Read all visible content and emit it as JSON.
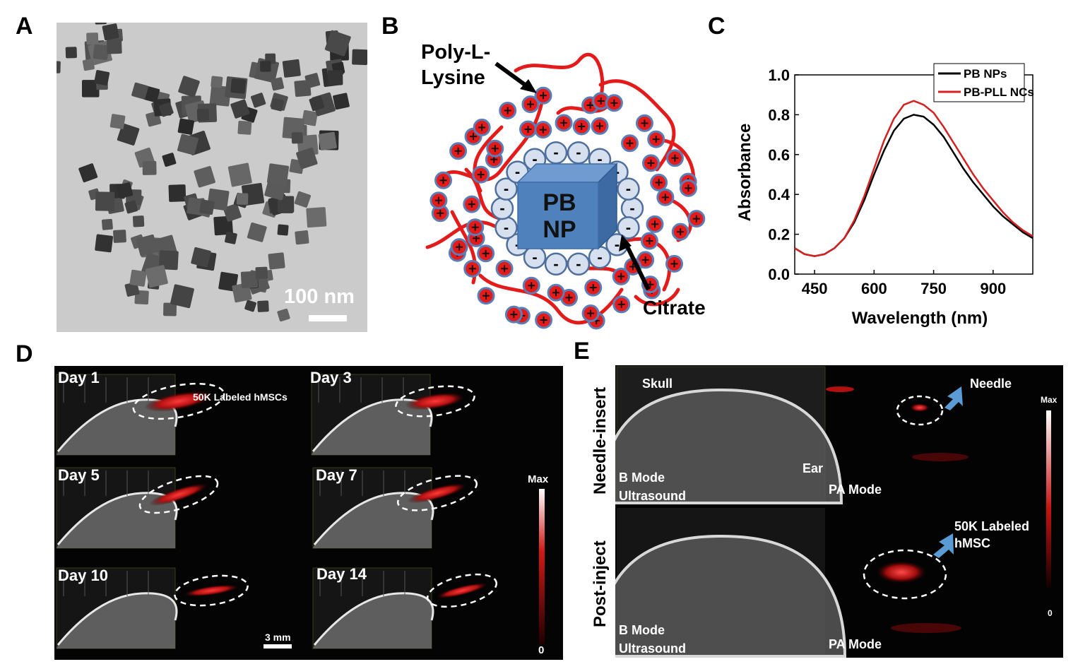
{
  "panels": {
    "A": {
      "label": "A",
      "scale_bar": "100 nm"
    },
    "B": {
      "label": "B",
      "poly_label_line1": "Poly-L-",
      "poly_label_line2": "Lysine",
      "core_line1": "PB",
      "core_line2": "NP",
      "citrate_label": "Citrate",
      "minus": "-"
    },
    "C": {
      "label": "C",
      "chart_data": {
        "type": "line",
        "xlabel": "Wavelength (nm)",
        "ylabel": "Absorbance",
        "xlim": [
          400,
          1000
        ],
        "ylim": [
          0.0,
          1.0
        ],
        "xticks": [
          "450",
          "600",
          "750",
          "900"
        ],
        "yticks": [
          "0.0",
          "0.2",
          "0.4",
          "0.6",
          "0.8",
          "1.0"
        ],
        "legend_position": "top-right",
        "series": [
          {
            "name": "PB NPs",
            "color": "#000000",
            "x": [
              400,
              425,
              450,
              475,
              500,
              525,
              550,
              575,
              600,
              625,
              650,
              675,
              700,
              725,
              750,
              775,
              800,
              825,
              850,
              875,
              900,
              925,
              950,
              975,
              1000
            ],
            "y": [
              0.13,
              0.1,
              0.09,
              0.1,
              0.13,
              0.18,
              0.26,
              0.37,
              0.5,
              0.62,
              0.72,
              0.78,
              0.8,
              0.79,
              0.75,
              0.69,
              0.61,
              0.53,
              0.46,
              0.4,
              0.34,
              0.29,
              0.25,
              0.21,
              0.18
            ]
          },
          {
            "name": "PB-PLL NCs",
            "color": "#d42020",
            "x": [
              400,
              425,
              450,
              475,
              500,
              525,
              550,
              575,
              600,
              625,
              650,
              675,
              700,
              725,
              750,
              775,
              800,
              825,
              850,
              875,
              900,
              925,
              950,
              975,
              1000
            ],
            "y": [
              0.13,
              0.1,
              0.09,
              0.1,
              0.13,
              0.18,
              0.27,
              0.39,
              0.53,
              0.67,
              0.78,
              0.85,
              0.87,
              0.85,
              0.81,
              0.74,
              0.66,
              0.58,
              0.5,
              0.43,
              0.37,
              0.31,
              0.26,
              0.22,
              0.19
            ]
          }
        ]
      }
    },
    "D": {
      "label": "D",
      "days": [
        "Day 1",
        "Day 3",
        "Day 5",
        "Day 7",
        "Day 10",
        "Day 14"
      ],
      "annotation": "50K Labeled hMSCs",
      "colorbar_max": "Max",
      "colorbar_min": "0",
      "scale_bar": "3 mm"
    },
    "E": {
      "label": "E",
      "row1": "Needle-insert",
      "row2": "Post-inject",
      "skull": "Skull",
      "ear": "Ear",
      "bmode_line1": "B Mode",
      "bmode_line2": "Ultrasound",
      "pa_mode": "PA Mode",
      "needle": "Needle",
      "labeled_line1": "50K Labeled",
      "labeled_line2": "hMSC",
      "colorbar_max": "Max",
      "colorbar_min": "0"
    }
  },
  "colors": {
    "polymer_red": "#e41b1b",
    "core_blue": "#4f81bd",
    "citrate_fill": "#d6e0ee",
    "pa_red": "#c4141a"
  }
}
